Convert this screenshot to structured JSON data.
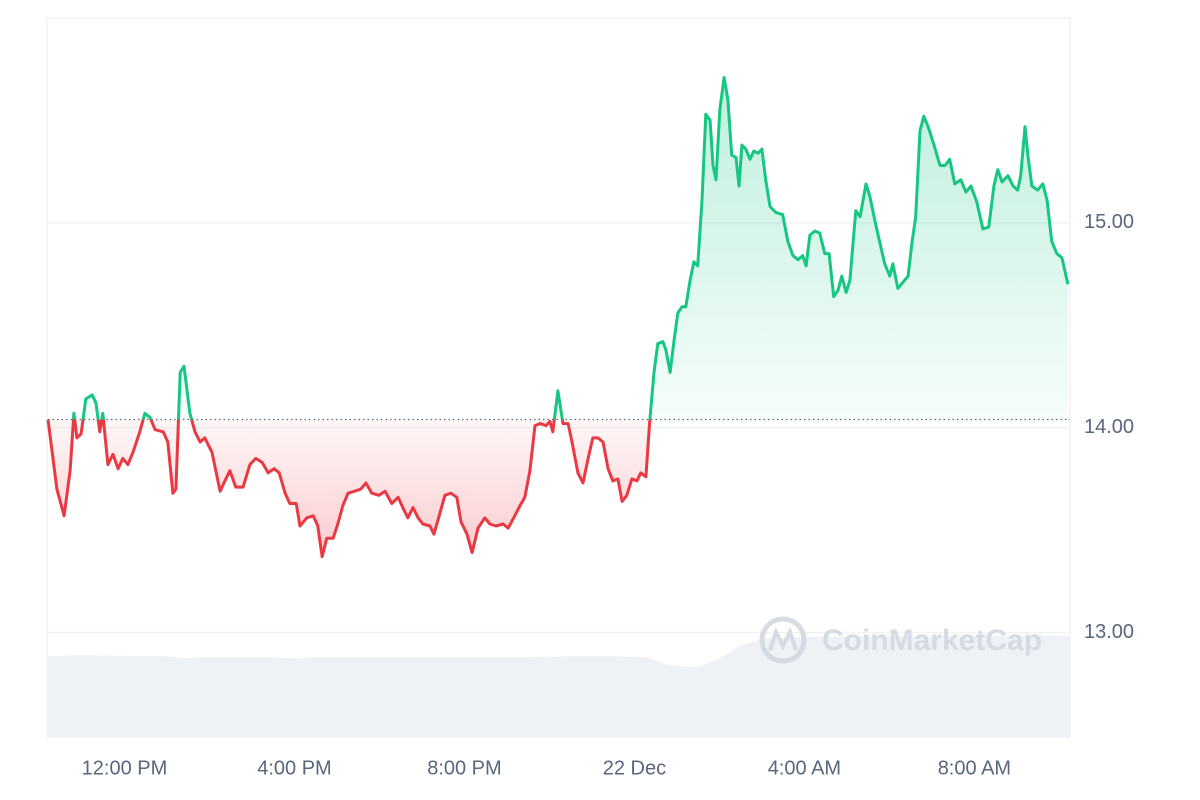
{
  "chart_data": {
    "type": "line",
    "watermark": "CoinMarketCap",
    "x": [
      10.2,
      10.41,
      10.58,
      10.72,
      10.81,
      10.88,
      10.98,
      11.09,
      11.24,
      11.33,
      11.42,
      11.49,
      11.61,
      11.73,
      11.85,
      11.96,
      12.08,
      12.2,
      12.36,
      12.48,
      12.6,
      12.72,
      12.91,
      13.02,
      13.14,
      13.21,
      13.31,
      13.4,
      13.54,
      13.66,
      13.78,
      13.89,
      14.06,
      14.25,
      14.34,
      14.48,
      14.62,
      14.79,
      14.95,
      15.09,
      15.24,
      15.38,
      15.52,
      15.64,
      15.78,
      15.89,
      16.04,
      16.13,
      16.29,
      16.44,
      16.55,
      16.65,
      16.76,
      16.91,
      17.02,
      17.14,
      17.26,
      17.42,
      17.56,
      17.68,
      17.82,
      17.99,
      18.13,
      18.29,
      18.44,
      18.55,
      18.67,
      18.79,
      18.91,
      19.02,
      19.19,
      19.28,
      19.42,
      19.54,
      19.68,
      19.82,
      19.92,
      20.06,
      20.18,
      20.32,
      20.48,
      20.6,
      20.74,
      20.91,
      21.03,
      21.16,
      21.31,
      21.42,
      21.54,
      21.66,
      21.78,
      21.92,
      22.01,
      22.08,
      22.2,
      22.32,
      22.44,
      22.53,
      22.67,
      22.79,
      22.91,
      23.02,
      23.14,
      23.26,
      23.38,
      23.49,
      23.61,
      23.71,
      23.82,
      23.94,
      24.06,
      24.15,
      24.27,
      24.36,
      24.46,
      24.55,
      24.67,
      24.74,
      24.84,
      24.93,
      25.02,
      25.12,
      25.21,
      25.31,
      25.4,
      25.49,
      25.59,
      25.68,
      25.78,
      25.85,
      25.92,
      26.01,
      26.11,
      26.2,
      26.29,
      26.39,
      26.46,
      26.53,
      26.62,
      26.72,
      26.81,
      26.91,
      27.0,
      27.09,
      27.19,
      27.33,
      27.49,
      27.61,
      27.73,
      27.85,
      27.96,
      28.04,
      28.13,
      28.25,
      28.36,
      28.48,
      28.58,
      28.69,
      28.79,
      28.88,
      28.98,
      29.07,
      29.21,
      29.31,
      29.45,
      29.54,
      29.66,
      29.78,
      29.89,
      30.01,
      30.08,
      30.2,
      30.32,
      30.44,
      30.53,
      30.62,
      30.72,
      30.81,
      30.91,
      31.05,
      31.19,
      31.31,
      31.42,
      31.54,
      31.68,
      31.8,
      31.92,
      32.06,
      32.2,
      32.34,
      32.46,
      32.55,
      32.65,
      32.79,
      32.91,
      33.02,
      33.09,
      33.19,
      33.26,
      33.35,
      33.49,
      33.61,
      33.71,
      33.82,
      33.94,
      34.06,
      34.2
    ],
    "values": [
      14.04,
      13.7,
      13.57,
      13.79,
      14.07,
      13.95,
      13.97,
      14.14,
      14.16,
      14.12,
      13.98,
      14.07,
      13.82,
      13.87,
      13.8,
      13.85,
      13.82,
      13.88,
      13.98,
      14.07,
      14.05,
      13.99,
      13.98,
      13.93,
      13.68,
      13.7,
      14.27,
      14.3,
      14.07,
      13.98,
      13.93,
      13.95,
      13.88,
      13.69,
      13.73,
      13.79,
      13.71,
      13.71,
      13.82,
      13.85,
      13.83,
      13.78,
      13.8,
      13.78,
      13.68,
      13.63,
      13.63,
      13.52,
      13.56,
      13.57,
      13.52,
      13.37,
      13.46,
      13.46,
      13.53,
      13.62,
      13.68,
      13.69,
      13.7,
      13.73,
      13.68,
      13.67,
      13.69,
      13.63,
      13.66,
      13.61,
      13.56,
      13.61,
      13.56,
      13.53,
      13.52,
      13.48,
      13.58,
      13.67,
      13.68,
      13.66,
      13.54,
      13.48,
      13.39,
      13.51,
      13.56,
      13.53,
      13.52,
      13.53,
      13.51,
      13.56,
      13.62,
      13.66,
      13.79,
      14.01,
      14.02,
      14.01,
      14.03,
      13.98,
      14.18,
      14.02,
      14.02,
      13.93,
      13.78,
      13.73,
      13.85,
      13.95,
      13.95,
      13.93,
      13.8,
      13.74,
      13.75,
      13.64,
      13.67,
      13.75,
      13.74,
      13.78,
      13.76,
      14.03,
      14.27,
      14.41,
      14.42,
      14.38,
      14.27,
      14.42,
      14.56,
      14.59,
      14.59,
      14.72,
      14.81,
      14.79,
      15.11,
      15.53,
      15.5,
      15.28,
      15.21,
      15.55,
      15.71,
      15.6,
      15.33,
      15.32,
      15.18,
      15.38,
      15.36,
      15.31,
      15.35,
      15.34,
      15.36,
      15.21,
      15.08,
      15.05,
      15.04,
      14.91,
      14.84,
      14.82,
      14.84,
      14.79,
      14.94,
      14.96,
      14.95,
      14.85,
      14.85,
      14.64,
      14.67,
      14.74,
      14.66,
      14.72,
      15.06,
      15.03,
      15.19,
      15.13,
      15.01,
      14.9,
      14.8,
      14.74,
      14.8,
      14.68,
      14.71,
      14.74,
      14.9,
      15.03,
      15.45,
      15.52,
      15.47,
      15.38,
      15.28,
      15.28,
      15.31,
      15.19,
      15.21,
      15.15,
      15.18,
      15.1,
      14.97,
      14.98,
      15.18,
      15.26,
      15.2,
      15.23,
      15.18,
      15.16,
      15.23,
      15.47,
      15.33,
      15.18,
      15.16,
      15.19,
      15.11,
      14.91,
      14.85,
      14.83,
      14.7
    ],
    "baseline": 14.04,
    "up_color": "#16c784",
    "down_color": "#ea3943",
    "volume_x": [
      10.2,
      10.9,
      13.0,
      13.4,
      13.8,
      15.5,
      16.0,
      16.5,
      21.5,
      22.5,
      23.5,
      24.3,
      24.8,
      25.5,
      26.0,
      26.5,
      27.0,
      28.0,
      34.25
    ],
    "volume_values": [
      74,
      75,
      74,
      72,
      73,
      73,
      72,
      73,
      73,
      74,
      74,
      73,
      66,
      64,
      72,
      84,
      90,
      92,
      93
    ],
    "volume_color": "#eef1f5",
    "y2lim": [
      0,
      100
    ],
    "xlim": [
      10.2,
      34.25
    ],
    "xticks": [
      {
        "value": 12,
        "label": "12:00 PM"
      },
      {
        "value": 16,
        "label": "4:00 PM"
      },
      {
        "value": 20,
        "label": "8:00 PM"
      },
      {
        "value": 24,
        "label": "22 Dec"
      },
      {
        "value": 28,
        "label": "4:00 AM"
      },
      {
        "value": 32,
        "label": "8:00 AM"
      }
    ],
    "ylim": [
      12.49,
      16.0
    ],
    "yticks": [
      {
        "value": 13,
        "label": "13.00"
      },
      {
        "value": 14,
        "label": "14.00"
      },
      {
        "value": 15,
        "label": "15.00"
      }
    ],
    "grid": true
  }
}
